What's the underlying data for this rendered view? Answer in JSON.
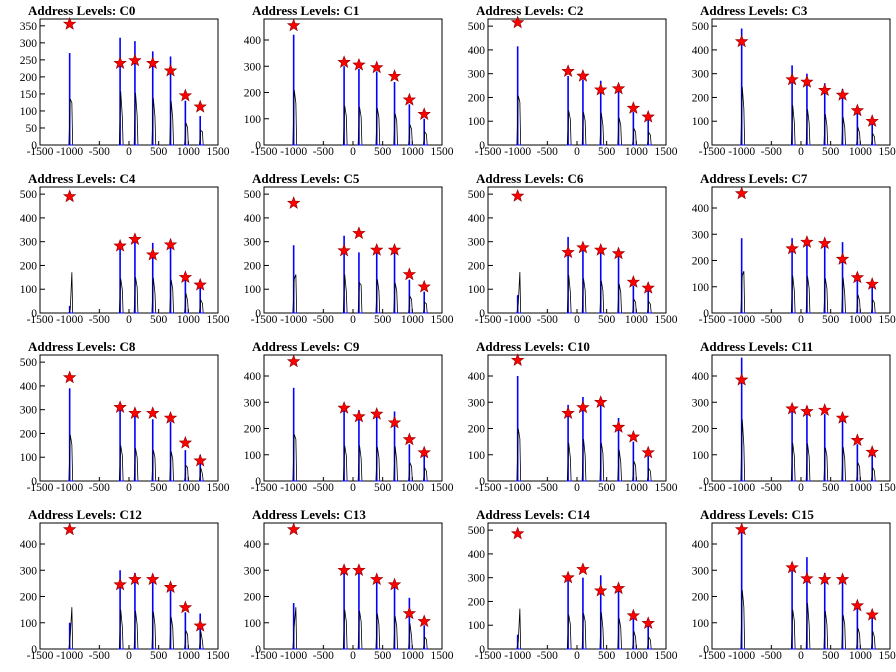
{
  "chart_data": [
    {
      "type": "histogram",
      "title": "Address Levels: C0",
      "xlim": [
        -1500,
        1500
      ],
      "ylim": [
        0,
        370
      ],
      "xticks": [
        -1500,
        -1000,
        -500,
        0,
        500,
        1000,
        1500
      ],
      "yticks": [
        0,
        50,
        100,
        150,
        200,
        250,
        300,
        350
      ],
      "peaks": [
        -1000,
        -150,
        100,
        400,
        700,
        950,
        1200
      ],
      "markers": [
        355,
        240,
        248,
        240,
        218,
        145,
        112
      ],
      "bars": [
        270,
        315,
        305,
        275,
        260,
        130,
        85
      ]
    },
    {
      "type": "histogram",
      "title": "Address Levels: C1",
      "xlim": [
        -1500,
        1500
      ],
      "ylim": [
        0,
        480
      ],
      "xticks": [
        -1500,
        -1000,
        -500,
        0,
        500,
        1000,
        1500
      ],
      "yticks": [
        0,
        100,
        200,
        300,
        400
      ],
      "peaks": [
        -1000,
        -150,
        100,
        400,
        700,
        950,
        1200
      ],
      "markers": [
        455,
        315,
        305,
        295,
        262,
        172,
        117
      ],
      "bars": [
        420,
        300,
        290,
        280,
        240,
        155,
        100
      ]
    },
    {
      "type": "histogram",
      "title": "Address Levels: C2",
      "xlim": [
        -1500,
        1500
      ],
      "ylim": [
        0,
        530
      ],
      "xticks": [
        -1500,
        -1000,
        -500,
        0,
        500,
        1000,
        1500
      ],
      "yticks": [
        0,
        100,
        200,
        300,
        400,
        500
      ],
      "peaks": [
        -1000,
        -150,
        100,
        400,
        700,
        950,
        1200
      ],
      "markers": [
        515,
        310,
        290,
        232,
        237,
        155,
        118
      ],
      "bars": [
        415,
        290,
        275,
        270,
        230,
        140,
        105
      ]
    },
    {
      "type": "histogram",
      "title": "Address Levels: C3",
      "xlim": [
        -1500,
        1500
      ],
      "ylim": [
        0,
        530
      ],
      "xticks": [
        -1500,
        -1000,
        -500,
        0,
        500,
        1000,
        1500
      ],
      "yticks": [
        0,
        100,
        200,
        300,
        400,
        500
      ],
      "peaks": [
        -1000,
        -150,
        100,
        400,
        700,
        950,
        1200
      ],
      "markers": [
        435,
        275,
        265,
        230,
        210,
        145,
        100
      ],
      "bars": [
        490,
        335,
        300,
        260,
        235,
        150,
        95
      ]
    },
    {
      "type": "histogram",
      "title": "Address Levels: C4",
      "xlim": [
        -1500,
        1500
      ],
      "ylim": [
        0,
        530
      ],
      "xticks": [
        -1500,
        -1000,
        -500,
        0,
        500,
        1000,
        1500
      ],
      "yticks": [
        0,
        100,
        200,
        300,
        400,
        500
      ],
      "peaks": [
        -1000,
        -150,
        100,
        400,
        700,
        950,
        1200
      ],
      "markers": [
        490,
        282,
        310,
        245,
        287,
        150,
        118
      ],
      "bars": [
        30,
        290,
        300,
        295,
        280,
        165,
        110
      ]
    },
    {
      "type": "histogram",
      "title": "Address Levels: C5",
      "xlim": [
        -1500,
        1500
      ],
      "ylim": [
        0,
        530
      ],
      "xticks": [
        -1500,
        -1000,
        -500,
        0,
        500,
        1000,
        1500
      ],
      "yticks": [
        0,
        100,
        200,
        300,
        400,
        500
      ],
      "peaks": [
        -1000,
        -150,
        100,
        400,
        700,
        950,
        1200
      ],
      "markers": [
        462,
        262,
        335,
        265,
        265,
        162,
        110
      ],
      "bars": [
        285,
        325,
        255,
        285,
        255,
        140,
        90
      ]
    },
    {
      "type": "histogram",
      "title": "Address Levels: C6",
      "xlim": [
        -1500,
        1500
      ],
      "ylim": [
        0,
        530
      ],
      "xticks": [
        -1500,
        -1000,
        -500,
        0,
        500,
        1000,
        1500
      ],
      "yticks": [
        0,
        100,
        200,
        300,
        400,
        500
      ],
      "peaks": [
        -1000,
        -150,
        100,
        400,
        700,
        950,
        1200
      ],
      "markers": [
        492,
        255,
        275,
        265,
        250,
        130,
        105
      ],
      "bars": [
        75,
        320,
        290,
        270,
        245,
        115,
        95
      ]
    },
    {
      "type": "histogram",
      "title": "Address Levels: C7",
      "xlim": [
        -1500,
        1500
      ],
      "ylim": [
        0,
        480
      ],
      "xticks": [
        -1500,
        -1000,
        -500,
        0,
        500,
        1000,
        1500
      ],
      "yticks": [
        0,
        100,
        200,
        300,
        400
      ],
      "peaks": [
        -1000,
        -150,
        100,
        400,
        700,
        950,
        1200
      ],
      "markers": [
        455,
        245,
        270,
        265,
        205,
        135,
        110
      ],
      "bars": [
        285,
        285,
        280,
        265,
        270,
        140,
        100
      ]
    },
    {
      "type": "histogram",
      "title": "Address Levels: C8",
      "xlim": [
        -1500,
        1500
      ],
      "ylim": [
        0,
        530
      ],
      "xticks": [
        -1500,
        -1000,
        -500,
        0,
        500,
        1000,
        1500
      ],
      "yticks": [
        0,
        100,
        200,
        300,
        400,
        500
      ],
      "peaks": [
        -1000,
        -150,
        100,
        400,
        700,
        950,
        1200
      ],
      "markers": [
        435,
        310,
        285,
        285,
        265,
        160,
        85
      ],
      "bars": [
        390,
        300,
        275,
        260,
        250,
        130,
        110
      ]
    },
    {
      "type": "histogram",
      "title": "Address Levels: C9",
      "xlim": [
        -1500,
        1500
      ],
      "ylim": [
        0,
        480
      ],
      "xticks": [
        -1500,
        -1000,
        -500,
        0,
        500,
        1000,
        1500
      ],
      "yticks": [
        0,
        100,
        200,
        300,
        400
      ],
      "peaks": [
        -1000,
        -150,
        100,
        400,
        700,
        950,
        1200
      ],
      "markers": [
        455,
        278,
        245,
        255,
        222,
        158,
        108
      ],
      "bars": [
        355,
        270,
        270,
        260,
        265,
        140,
        100
      ]
    },
    {
      "type": "histogram",
      "title": "Address Levels: C10",
      "xlim": [
        -1500,
        1500
      ],
      "ylim": [
        0,
        480
      ],
      "xticks": [
        -1500,
        -1000,
        -500,
        0,
        500,
        1000,
        1500
      ],
      "yticks": [
        0,
        100,
        200,
        300,
        400
      ],
      "peaks": [
        -1000,
        -150,
        100,
        400,
        700,
        950,
        1200
      ],
      "markers": [
        460,
        258,
        280,
        300,
        205,
        168,
        108
      ],
      "bars": [
        400,
        290,
        320,
        290,
        240,
        150,
        95
      ]
    },
    {
      "type": "histogram",
      "title": "Address Levels: C11",
      "xlim": [
        -1500,
        1500
      ],
      "ylim": [
        0,
        480
      ],
      "xticks": [
        -1500,
        -1000,
        -500,
        0,
        500,
        1000,
        1500
      ],
      "yticks": [
        0,
        100,
        200,
        300,
        400
      ],
      "peaks": [
        -1000,
        -150,
        100,
        400,
        700,
        950,
        1200
      ],
      "markers": [
        385,
        275,
        265,
        270,
        240,
        155,
        110
      ],
      "bars": [
        470,
        290,
        285,
        255,
        260,
        140,
        100
      ]
    },
    {
      "type": "histogram",
      "title": "Address Levels: C12",
      "xlim": [
        -1500,
        1500
      ],
      "ylim": [
        0,
        480
      ],
      "xticks": [
        -1500,
        -1000,
        -500,
        0,
        500,
        1000,
        1500
      ],
      "yticks": [
        0,
        100,
        200,
        300,
        400
      ],
      "peaks": [
        -1000,
        -150,
        100,
        400,
        700,
        950,
        1200
      ],
      "markers": [
        455,
        245,
        265,
        265,
        235,
        158,
        88
      ],
      "bars": [
        100,
        300,
        290,
        285,
        245,
        140,
        135
      ]
    },
    {
      "type": "histogram",
      "title": "Address Levels: C13",
      "xlim": [
        -1500,
        1500
      ],
      "ylim": [
        0,
        480
      ],
      "xticks": [
        -1500,
        -1000,
        -500,
        0,
        500,
        1000,
        1500
      ],
      "yticks": [
        0,
        100,
        200,
        300,
        400
      ],
      "peaks": [
        -1000,
        -150,
        100,
        400,
        700,
        950,
        1200
      ],
      "markers": [
        455,
        300,
        300,
        265,
        245,
        135,
        105
      ],
      "bars": [
        175,
        300,
        290,
        270,
        250,
        195,
        90
      ]
    },
    {
      "type": "histogram",
      "title": "Address Levels: C14",
      "xlim": [
        -1500,
        1500
      ],
      "ylim": [
        0,
        530
      ],
      "xticks": [
        -1500,
        -1000,
        -500,
        0,
        500,
        1000,
        1500
      ],
      "yticks": [
        0,
        100,
        200,
        300,
        400,
        500
      ],
      "peaks": [
        -1000,
        -150,
        100,
        400,
        700,
        950,
        1200
      ],
      "markers": [
        485,
        300,
        335,
        245,
        255,
        140,
        108
      ],
      "bars": [
        60,
        290,
        300,
        310,
        260,
        150,
        100
      ]
    },
    {
      "type": "histogram",
      "title": "Address Levels: C15",
      "xlim": [
        -1500,
        1500
      ],
      "ylim": [
        0,
        480
      ],
      "xticks": [
        -1500,
        -1000,
        -500,
        0,
        500,
        1000,
        1500
      ],
      "yticks": [
        0,
        100,
        200,
        300,
        400
      ],
      "peaks": [
        -1000,
        -150,
        100,
        400,
        700,
        950,
        1200
      ],
      "markers": [
        455,
        310,
        268,
        265,
        265,
        165,
        130
      ],
      "bars": [
        450,
        300,
        350,
        290,
        260,
        160,
        135
      ]
    }
  ],
  "colors": {
    "histogram_line": "#0000ff",
    "outline_line": "#000000",
    "marker_fill": "#ff0000",
    "marker_stroke": "#8b0000",
    "frame": "#000000"
  }
}
